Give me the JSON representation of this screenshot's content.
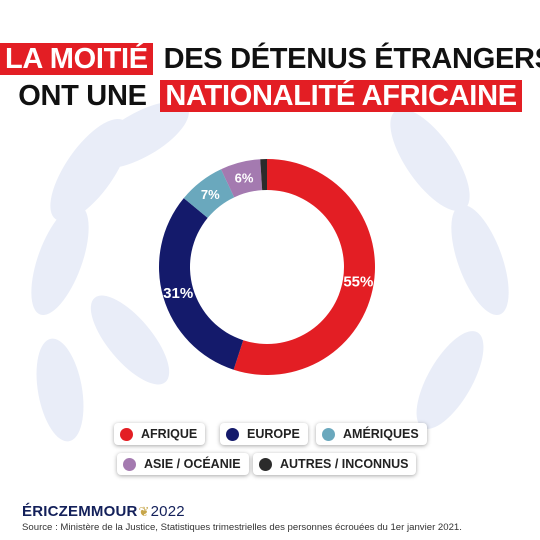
{
  "title": {
    "line1_highlight": "LA MOITIÉ",
    "line1_rest": "DES DÉTENUS ÉTRANGERS",
    "line2_rest": "ONT UNE",
    "line2_highlight": "NATIONALITÉ AFRICAINE"
  },
  "chart_data": {
    "type": "pie",
    "title": "LA MOITIÉ DES DÉTENUS ÉTRANGERS ONT UNE NATIONALITÉ AFRICAINE",
    "slices": [
      {
        "label": "AFRIQUE",
        "value": 55,
        "value_label": "55%",
        "color": "#e31e24"
      },
      {
        "label": "EUROPE",
        "value": 31,
        "value_label": "31%",
        "color": "#141a6b"
      },
      {
        "label": "AMÉRIQUES",
        "value": 7,
        "value_label": "7%",
        "color": "#6aa8bd"
      },
      {
        "label": "ASIE / OCÉANIE",
        "value": 6,
        "value_label": "6%",
        "color": "#a47ab0"
      },
      {
        "label": "AUTRES / INCONNUS",
        "value": 1,
        "value_label": "",
        "color": "#2b2b2b"
      }
    ],
    "legend_position": "bottom"
  },
  "branding": {
    "name_part1": "ÉRIC",
    "name_part2": "ZEMMOUR",
    "year": "2022"
  },
  "source": "Source : Ministère de la Justice, Statistiques trimestrielles des personnes écrouées du 1er janvier 2021.",
  "colors": {
    "accent_red": "#e31e24",
    "navy": "#141a6b",
    "leaf": "#e8ecf7"
  },
  "icons": {
    "brand_sprig": "olive-sprig-icon"
  }
}
